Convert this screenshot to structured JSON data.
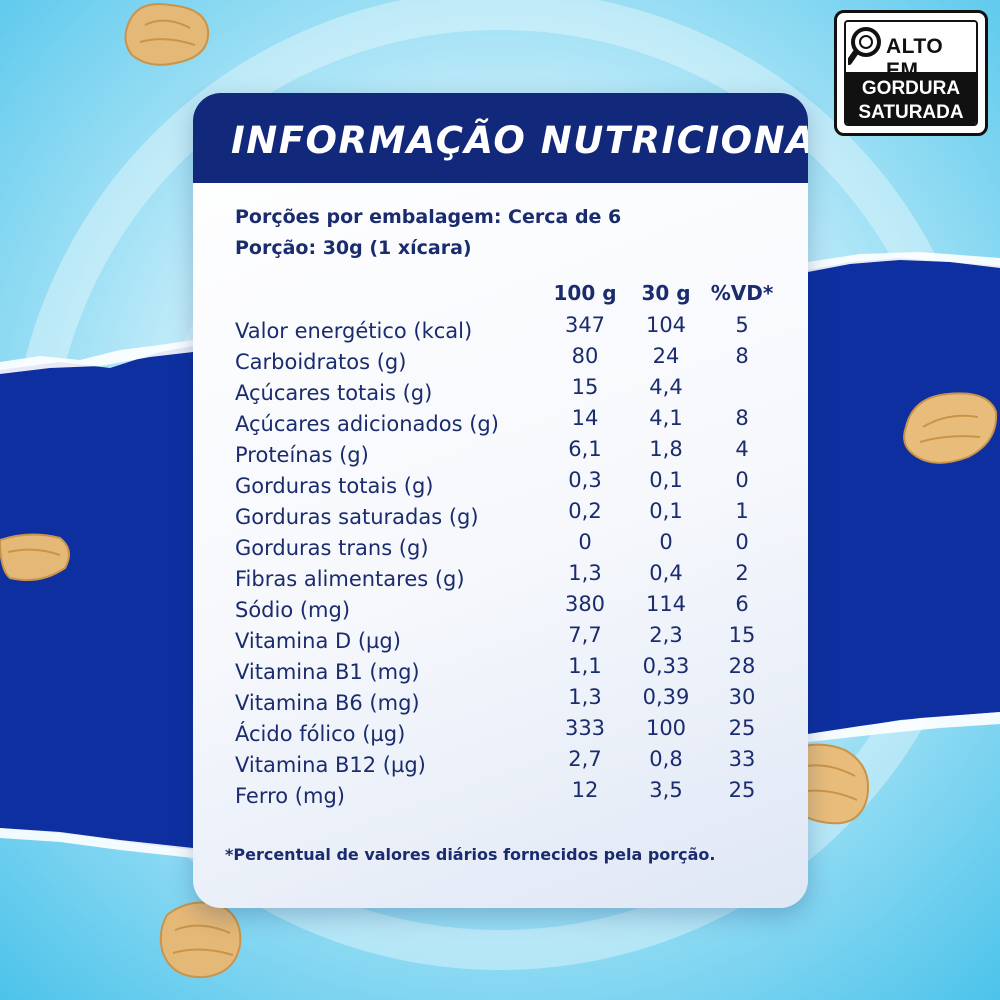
{
  "seal": {
    "line1": "ALTO EM",
    "line2": "GORDURA",
    "line3": "SATURADA",
    "icon": "magnifier-icon"
  },
  "card": {
    "title": "INFORMAÇÃO NUTRICIONAL",
    "servings_per_package": "Porções por embalagem: Cerca de 6",
    "serving_size": "Porção: 30g (1 xícara)",
    "columns": [
      "100 g",
      "30 g",
      "%VD*"
    ],
    "rows": [
      {
        "label": "Valor energético (kcal)",
        "v100": "347",
        "v30": "104",
        "vd": "5"
      },
      {
        "label": "Carboidratos (g)",
        "v100": "80",
        "v30": "24",
        "vd": "8"
      },
      {
        "label": "Açúcares totais (g)",
        "v100": "15",
        "v30": "4,4",
        "vd": ""
      },
      {
        "label": "Açúcares adicionados (g)",
        "v100": "14",
        "v30": "4,1",
        "vd": "8"
      },
      {
        "label": "Proteínas (g)",
        "v100": "6,1",
        "v30": "1,8",
        "vd": "4"
      },
      {
        "label": "Gorduras totais (g)",
        "v100": "0,3",
        "v30": "0,1",
        "vd": "0"
      },
      {
        "label": "Gorduras saturadas (g)",
        "v100": "0,2",
        "v30": "0,1",
        "vd": "1"
      },
      {
        "label": "Gorduras trans (g)",
        "v100": "0",
        "v30": "0",
        "vd": "0"
      },
      {
        "label": "Fibras alimentares (g)",
        "v100": "1,3",
        "v30": "0,4",
        "vd": "2"
      },
      {
        "label": "Sódio (mg)",
        "v100": "380",
        "v30": "114",
        "vd": "6"
      },
      {
        "label": "Vitamina D (µg)",
        "v100": "7,7",
        "v30": "2,3",
        "vd": "15"
      },
      {
        "label": "Vitamina B1 (mg)",
        "v100": "1,1",
        "v30": "0,33",
        "vd": "28"
      },
      {
        "label": "Vitamina B6 (mg)",
        "v100": "1,3",
        "v30": "0,39",
        "vd": "30"
      },
      {
        "label": "Ácido fólico (µg)",
        "v100": "333",
        "v30": "100",
        "vd": "25"
      },
      {
        "label": "Vitamina B12 (µg)",
        "v100": "2,7",
        "v30": "0,8",
        "vd": "33"
      },
      {
        "label": "Ferro (mg)",
        "v100": "12",
        "v30": "3,5",
        "vd": "25"
      }
    ],
    "footnote": "*Percentual de valores diários fornecidos pela porção."
  },
  "colors": {
    "header": "#12287a",
    "text": "#1a2c6e",
    "band": "#0e2fa0",
    "sky": "#4cc3ea"
  }
}
